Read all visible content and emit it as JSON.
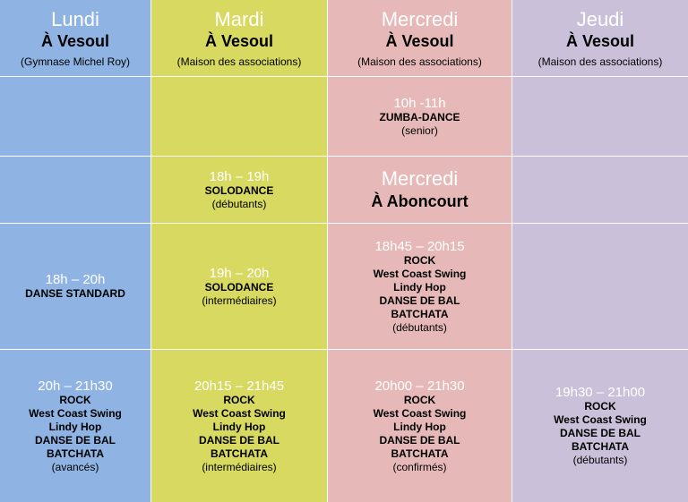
{
  "headers": [
    {
      "day": "Lundi",
      "city": "À Vesoul",
      "place": "(Gymnase Michel Roy)"
    },
    {
      "day": "Mardi",
      "city": "À Vesoul",
      "place": "(Maison des associations)"
    },
    {
      "day": "Mercredi",
      "city": "À Vesoul",
      "place": "(Maison des associations)"
    },
    {
      "day": "Jeudi",
      "city": "À Vesoul",
      "place": "(Maison des associations)"
    }
  ],
  "row1": {
    "mercredi": {
      "time": "10h -11h",
      "lines": [
        "ZUMBA-DANCE"
      ],
      "level": "(senior)"
    }
  },
  "row2": {
    "mardi": {
      "time": "18h – 19h",
      "lines": [
        "SOLODANCE"
      ],
      "level": "(débutants)"
    },
    "mercredi_heading": {
      "day": "Mercredi",
      "city": "À Aboncourt"
    }
  },
  "row3": {
    "lundi": {
      "time": "18h – 20h",
      "lines": [
        "DANSE STANDARD"
      ]
    },
    "mardi": {
      "time": "19h – 20h",
      "lines": [
        "SOLODANCE"
      ],
      "level": "(intermédiaires)"
    },
    "mercredi": {
      "time": "18h45 – 20h15",
      "lines": [
        "ROCK",
        "West Coast Swing",
        "Lindy Hop",
        "DANSE DE BAL",
        "BATCHATA"
      ],
      "level": "(débutants)"
    }
  },
  "row4": {
    "lundi": {
      "time": "20h – 21h30",
      "lines": [
        "ROCK",
        "West Coast Swing",
        "Lindy Hop",
        "DANSE DE BAL",
        "BATCHATA"
      ],
      "level": "(avancés)"
    },
    "mardi": {
      "time": "20h15 – 21h45",
      "lines": [
        "ROCK",
        "West Coast Swing",
        "Lindy Hop",
        "DANSE DE BAL",
        "BATCHATA"
      ],
      "level": "(intermédiaires)"
    },
    "mercredi": {
      "time": "20h00 – 21h30",
      "lines": [
        "ROCK",
        "West Coast Swing",
        "Lindy Hop",
        "DANSE DE BAL",
        "BATCHATA"
      ],
      "level": "(confirmés)"
    },
    "jeudi": {
      "time": "19h30 – 21h00",
      "lines": [
        "ROCK",
        "West Coast Swing",
        "DANSE DE BAL",
        "BATCHATA"
      ],
      "level": "(débutants)"
    }
  },
  "colors": {
    "lundi": "#8fb4e3",
    "mardi": "#d7d960",
    "mercredi": "#e6b9b8",
    "jeudi": "#cbc0da"
  }
}
